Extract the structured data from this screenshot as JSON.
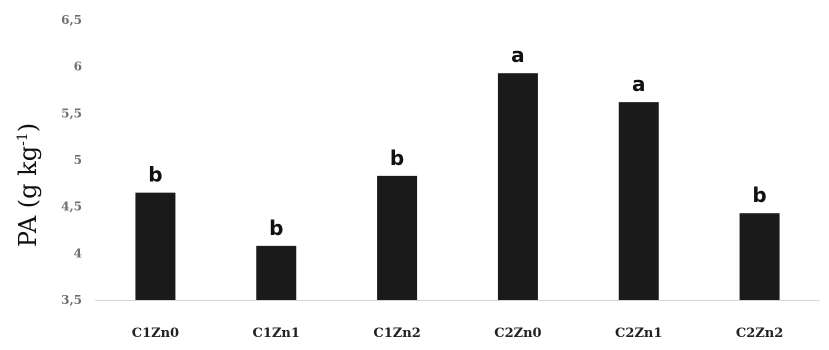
{
  "chart_data": {
    "type": "bar",
    "categories": [
      "C1Zn0",
      "C1Zn1",
      "C1Zn2",
      "C2Zn0",
      "C2Zn1",
      "C2Zn2"
    ],
    "values": [
      4.65,
      4.08,
      4.83,
      5.93,
      5.62,
      4.43
    ],
    "letters": [
      "b",
      "b",
      "b",
      "a",
      "a",
      "b"
    ],
    "ylabel": "PA (g kg",
    "ylabel_superscript": "-1",
    "ylabel_close": ")",
    "ylim": [
      3.5,
      6.5
    ],
    "yticks": [
      "3,5",
      "4",
      "4,5",
      "5",
      "5,5",
      "6",
      "6,5"
    ],
    "grid": false,
    "bar_color": "#1a1a1a"
  }
}
